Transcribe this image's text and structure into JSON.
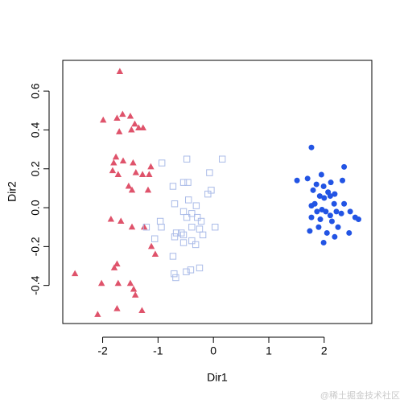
{
  "chart_data": {
    "type": "scatter",
    "x_label": "Dir1",
    "y_label": "Dir2",
    "xlim": [
      -2.72,
      2.86
    ],
    "ylim": [
      -0.596,
      0.758
    ],
    "xticks": [
      -2,
      -1,
      0,
      1,
      2
    ],
    "yticks": [
      -0.4,
      -0.2,
      {
        "value": 0,
        "label": "0.0"
      },
      0.2,
      0.4,
      0.6
    ],
    "series": [
      {
        "color": "#df536b",
        "marker": "triangle",
        "x": [
          -1.69,
          -1.99,
          -1.64,
          -1.74,
          -1.5,
          -1.42,
          -1.35,
          -1.27,
          -1.7,
          -1.48,
          -1.76,
          -1.63,
          -1.8,
          -1.45,
          -1.13,
          -1.82,
          -1.72,
          -1.4,
          -1.28,
          -1.16,
          -1.53,
          -1.47,
          -1.18,
          -1.85,
          -1.67,
          -1.47,
          -1.25,
          -1.12,
          -1.05,
          -1.74,
          -1.79,
          -2.5,
          -2.02,
          -1.72,
          -1.5,
          -1.44,
          -1.41,
          -1.74,
          -1.29,
          -2.09
        ],
        "y": [
          0.7,
          0.45,
          0.48,
          0.46,
          0.47,
          0.43,
          0.41,
          0.41,
          0.39,
          0.4,
          0.26,
          0.24,
          0.23,
          0.23,
          0.21,
          0.19,
          0.17,
          0.18,
          0.17,
          0.17,
          0.11,
          0.09,
          0.09,
          -0.06,
          -0.07,
          -0.1,
          -0.1,
          -0.2,
          -0.24,
          -0.29,
          -0.31,
          -0.34,
          -0.39,
          -0.39,
          -0.39,
          -0.42,
          -0.45,
          -0.52,
          -0.53,
          -0.55
        ]
      },
      {
        "color": "#aabbe8",
        "marker": "square",
        "x": [
          -0.93,
          -0.48,
          0.16,
          -0.07,
          -0.54,
          -0.46,
          -0.73,
          -0.04,
          -0.1,
          -0.45,
          -0.7,
          -0.31,
          -0.54,
          -0.39,
          -0.48,
          -0.29,
          -0.22,
          -0.96,
          -0.94,
          -1.21,
          0.03,
          -0.39,
          -0.25,
          -0.67,
          -0.58,
          -0.19,
          -0.7,
          -0.54,
          -1.06,
          -0.54,
          -0.39,
          -0.32,
          -0.73,
          -0.25,
          -0.49,
          -0.41,
          -0.71,
          -0.68
        ],
        "y": [
          0.23,
          0.25,
          0.25,
          0.18,
          0.13,
          0.13,
          0.11,
          0.09,
          0.07,
          0.04,
          0.02,
          0.01,
          -0.02,
          -0.03,
          -0.05,
          -0.05,
          -0.07,
          -0.07,
          -0.1,
          -0.1,
          -0.1,
          -0.1,
          -0.11,
          -0.13,
          -0.13,
          -0.14,
          -0.15,
          -0.14,
          -0.16,
          -0.18,
          -0.17,
          -0.19,
          -0.25,
          -0.31,
          -0.33,
          -0.32,
          -0.34,
          -0.36
        ]
      },
      {
        "color": "#2254e4",
        "marker": "circle",
        "x": [
          1.77,
          2.36,
          1.95,
          1.7,
          1.51,
          2.12,
          1.86,
          1.99,
          2.33,
          1.8,
          2.07,
          2.19,
          1.92,
          2.0,
          2.11,
          1.83,
          1.77,
          2.18,
          2.36,
          1.96,
          1.87,
          2.03,
          2.22,
          2.11,
          2.31,
          2.47,
          2.56,
          2.62,
          1.77,
          1.93,
          2.14,
          1.9,
          2.25,
          1.74,
          2.05,
          2.45,
          1.99,
          2.19
        ],
        "y": [
          0.31,
          0.21,
          0.17,
          0.15,
          0.14,
          0.13,
          0.12,
          0.11,
          0.14,
          0.09,
          0.08,
          0.07,
          0.06,
          0.05,
          0.06,
          0.02,
          0.01,
          0.02,
          0.02,
          -0.01,
          -0.02,
          -0.02,
          -0.02,
          -0.04,
          -0.03,
          -0.02,
          -0.05,
          -0.06,
          -0.05,
          -0.06,
          -0.07,
          -0.1,
          -0.1,
          -0.12,
          -0.13,
          -0.13,
          -0.18,
          -0.15
        ]
      }
    ]
  },
  "watermark": "@稀土掘金技术社区"
}
